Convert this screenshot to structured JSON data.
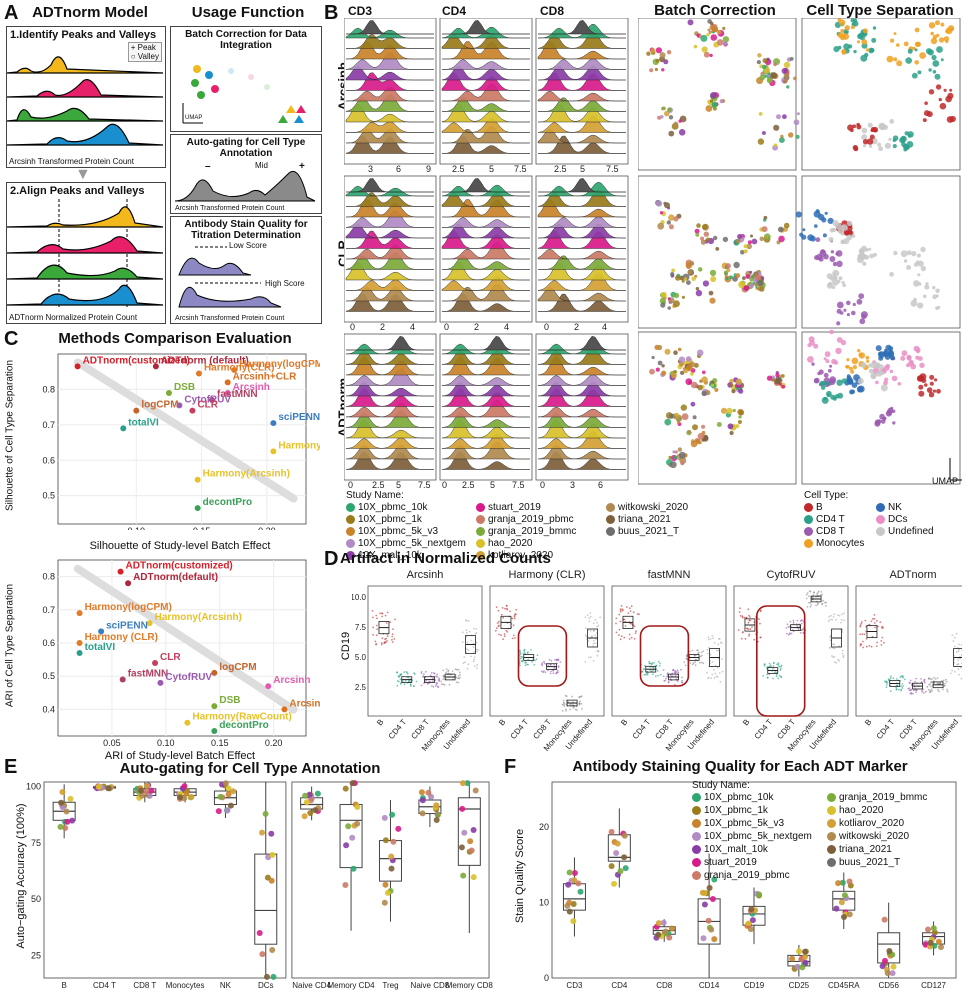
{
  "labels": {
    "A": "A",
    "B": "B",
    "C": "C",
    "D": "D",
    "E": "E",
    "F": "F"
  },
  "panelA": {
    "title": "ADTnorm Model",
    "usage_title": "Usage Function",
    "step1": "1.Identify Peaks and Valleys",
    "legend_peak": "Peak",
    "legend_valley": "Valley",
    "xlabel1": "Arcsinh Transformed Protein Count",
    "step2": "2.Align Peaks and Valleys",
    "xlabel2": "ADTnorm Normalized Protein Count",
    "usage1": "Batch Correction for Data Integration",
    "umap": "UMAP",
    "usage2": "Auto-gating for Cell Type Annotation",
    "mid": "Mid",
    "minus": "–",
    "plus": "+",
    "xlabel3": "Arcsinh Transformed Protein Count",
    "usage3": "Antibody Stain Quality for Titration Determination",
    "low_score": "Low Score",
    "high_score": "High Score",
    "xlabel4": "Arcsinh Transformed Protein Count"
  },
  "panelB": {
    "markers": [
      "CD3",
      "CD4",
      "CD8"
    ],
    "batch_title": "Batch Correction",
    "cell_title": "Cell Type Separation",
    "methods": [
      "Arcsinh",
      "CLR",
      "ADTnorm"
    ],
    "ticks": {
      "Arcsinh": [
        [
          "3",
          "6",
          "9"
        ],
        [
          "2.5",
          "5",
          "7.5"
        ],
        [
          "2.5",
          "5",
          "7.5"
        ]
      ],
      "CLR": [
        [
          "0",
          "2",
          "4"
        ],
        [
          "0",
          "2",
          "4"
        ],
        [
          "0",
          "2",
          "4"
        ]
      ],
      "ADTnorm": [
        [
          "0",
          "2.5",
          "5",
          "7.5"
        ],
        [
          "0",
          "2.5",
          "5",
          "7.5"
        ],
        [
          "0",
          "3",
          "6"
        ]
      ]
    },
    "umap": "UMAP",
    "study_title": "Study Name:",
    "studies": [
      {
        "name": "10X_pbmc_10k",
        "color": "#2ea76f"
      },
      {
        "name": "10X_pbmc_1k",
        "color": "#9a7b1c"
      },
      {
        "name": "10X_pbmc_5k_v3",
        "color": "#c9832a"
      },
      {
        "name": "10X_pbmc_5k_nextgem",
        "color": "#b08bc4"
      },
      {
        "name": "10X_malt_10k",
        "color": "#8a3ca8"
      },
      {
        "name": "stuart_2019",
        "color": "#d81b8a"
      },
      {
        "name": "granja_2019_pbmc",
        "color": "#cc7a66"
      },
      {
        "name": "granja_2019_bmmc",
        "color": "#7cab3a"
      },
      {
        "name": "hao_2020",
        "color": "#d8c12a"
      },
      {
        "name": "kotliarov_2020",
        "color": "#d4a035"
      },
      {
        "name": "witkowski_2020",
        "color": "#b08a50"
      },
      {
        "name": "triana_2021",
        "color": "#7d5f3a"
      },
      {
        "name": "buus_2021_T",
        "color": "#6e6e6e"
      }
    ],
    "celltype_title": "Cell Type:",
    "celltypes": [
      {
        "name": "B",
        "color": "#c0282a"
      },
      {
        "name": "CD4 T",
        "color": "#2aa08a"
      },
      {
        "name": "CD8 T",
        "color": "#9a5bb0"
      },
      {
        "name": "Monocytes",
        "color": "#f0a020"
      },
      {
        "name": "NK",
        "color": "#2e6db5"
      },
      {
        "name": "DCs",
        "color": "#e98fc4"
      },
      {
        "name": "Undefined",
        "color": "#c8c8c8"
      }
    ]
  },
  "panelC": {
    "title": "Methods Comparison Evaluation",
    "top": {
      "xlabel": "Silhouette of Study-level Batch Effect",
      "ylabel": "Silhouette of Cell Type Separation",
      "xticks": [
        "0.10",
        "0.15",
        "0.20"
      ],
      "yticks": [
        "0.5",
        "0.6",
        "0.7",
        "0.8"
      ]
    },
    "bottom": {
      "xlabel": "ARI of Study-level Batch Effect",
      "ylabel": "ARI of Cell Type Separation",
      "xticks": [
        "0.05",
        "0.10",
        "0.15",
        "0.20"
      ],
      "yticks": [
        "0.4",
        "0.5",
        "0.6",
        "0.7",
        "0.8"
      ]
    }
  },
  "panelD": {
    "title": "Artifact in Normalized Counts",
    "ylabel": "CD19",
    "methods": [
      "Arcsinh",
      "Harmony (CLR)",
      "fastMNN",
      "CytofRUV",
      "ADTnorm"
    ],
    "xcats": [
      "B",
      "CD4 T",
      "CD8 T",
      "Monocytes",
      "Undefined"
    ],
    "yticks_first": [
      "10.0",
      "7.5",
      "5.0",
      "2.5"
    ]
  },
  "panelE": {
    "title": "Auto-gating for Cell Type Annotation",
    "ylabel": "Auto−gating Accuracy (100%)",
    "yticks": [
      "100",
      "75",
      "50",
      "25"
    ]
  },
  "panelF": {
    "title": "Antibody Staining Quality for Each ADT Marker",
    "ylabel": "Stain Quality Score",
    "yticks": [
      "20",
      "10",
      "0"
    ],
    "study_title": "Study Name:"
  },
  "chart_data": [
    {
      "type": "scatter",
      "title": "Methods Comparison Evaluation",
      "xlabel": "Silhouette of Study-level Batch Effect",
      "ylabel": "Silhouette of Cell Type Separation",
      "xlim": [
        0.04,
        0.23
      ],
      "ylim": [
        0.42,
        0.9
      ],
      "points": [
        {
          "label": "ADTnorm(customized)",
          "x": 0.055,
          "y": 0.865,
          "color": "#d8202a"
        },
        {
          "label": "ADTnorm (default)",
          "x": 0.115,
          "y": 0.865,
          "color": "#b0263a"
        },
        {
          "label": "Harmony(CLR)",
          "x": 0.148,
          "y": 0.845,
          "color": "#e07b2a"
        },
        {
          "label": "Harmony(logCPM)",
          "x": 0.175,
          "y": 0.855,
          "color": "#e07b2a"
        },
        {
          "label": "Arcsinh+CLR",
          "x": 0.17,
          "y": 0.82,
          "color": "#d8701f"
        },
        {
          "label": "DSB",
          "x": 0.125,
          "y": 0.79,
          "color": "#7cab3a"
        },
        {
          "label": "Arcsinh",
          "x": 0.17,
          "y": 0.79,
          "color": "#e05cb0"
        },
        {
          "label": "fastMNN",
          "x": 0.158,
          "y": 0.77,
          "color": "#b0405e"
        },
        {
          "label": "CytofRUV",
          "x": 0.133,
          "y": 0.755,
          "color": "#9a5bb0"
        },
        {
          "label": "CLR",
          "x": 0.143,
          "y": 0.74,
          "color": "#c4405e"
        },
        {
          "label": "logCPM",
          "x": 0.1,
          "y": 0.74,
          "color": "#c4642a"
        },
        {
          "label": "sciPENN",
          "x": 0.205,
          "y": 0.705,
          "color": "#3a7ec0"
        },
        {
          "label": "totalVI",
          "x": 0.09,
          "y": 0.69,
          "color": "#2aa08a"
        },
        {
          "label": "Harmony (RawCount)",
          "x": 0.205,
          "y": 0.625,
          "color": "#e8c22a"
        },
        {
          "label": "Harmony(Arcsinh)",
          "x": 0.147,
          "y": 0.545,
          "color": "#e8c22a"
        },
        {
          "label": "decontPro",
          "x": 0.147,
          "y": 0.465,
          "color": "#3aa05a"
        }
      ]
    },
    {
      "type": "scatter",
      "xlabel": "ARI of Study-level Batch Effect",
      "ylabel": "ARI of Cell Type Separation",
      "xlim": [
        0.0,
        0.23
      ],
      "ylim": [
        0.32,
        0.85
      ],
      "points": [
        {
          "label": "ADTnorm(customized)",
          "x": 0.058,
          "y": 0.815,
          "color": "#d8202a"
        },
        {
          "label": "ADTnorm(default)",
          "x": 0.065,
          "y": 0.78,
          "color": "#b0263a"
        },
        {
          "label": "Harmony(logCPM)",
          "x": 0.02,
          "y": 0.69,
          "color": "#e07b2a"
        },
        {
          "label": "Harmony(Arcsinh)",
          "x": 0.085,
          "y": 0.66,
          "color": "#e8c22a"
        },
        {
          "label": "sciPENN",
          "x": 0.04,
          "y": 0.635,
          "color": "#3a7ec0"
        },
        {
          "label": "Harmony (CLR)",
          "x": 0.02,
          "y": 0.6,
          "color": "#e07b2a"
        },
        {
          "label": "totalVI",
          "x": 0.02,
          "y": 0.57,
          "color": "#2aa08a"
        },
        {
          "label": "CLR",
          "x": 0.09,
          "y": 0.54,
          "color": "#c4405e"
        },
        {
          "label": "logCPM",
          "x": 0.145,
          "y": 0.51,
          "color": "#c4642a"
        },
        {
          "label": "fastMNN",
          "x": 0.06,
          "y": 0.49,
          "color": "#b0405e"
        },
        {
          "label": "CytofRUV",
          "x": 0.095,
          "y": 0.48,
          "color": "#9a5bb0"
        },
        {
          "label": "Arcsinh",
          "x": 0.195,
          "y": 0.47,
          "color": "#e05cb0"
        },
        {
          "label": "Arcsinh+CLR",
          "x": 0.21,
          "y": 0.4,
          "color": "#d8701f"
        },
        {
          "label": "DSB",
          "x": 0.145,
          "y": 0.41,
          "color": "#7cab3a"
        },
        {
          "label": "Harmony(RawCount)",
          "x": 0.12,
          "y": 0.36,
          "color": "#e8c22a"
        },
        {
          "label": "decontPro",
          "x": 0.145,
          "y": 0.335,
          "color": "#3aa05a"
        }
      ]
    },
    {
      "type": "box",
      "title": "Auto-gating for Cell Type Annotation",
      "ylabel": "Auto−gating Accuracy (100%)",
      "ylim": [
        15,
        102
      ],
      "categories": [
        "B",
        "CD4 T",
        "CD8 T",
        "Monocytes",
        "NK",
        "DCs",
        "Naive CD4",
        "Memory CD4",
        "Treg",
        "Naive CD8",
        "Memory CD8"
      ],
      "boxes": [
        {
          "q1": 85,
          "med": 89,
          "q3": 93
        },
        {
          "q1": 99.3,
          "med": 99.6,
          "q3": 99.9
        },
        {
          "q1": 96,
          "med": 97.5,
          "q3": 99
        },
        {
          "q1": 96,
          "med": 97.5,
          "q3": 99
        },
        {
          "q1": 92,
          "med": 95,
          "q3": 98
        },
        {
          "q1": 30,
          "med": 45,
          "q3": 70
        },
        {
          "q1": 90,
          "med": 92,
          "q3": 95
        },
        {
          "q1": 64,
          "med": 85,
          "q3": 92
        },
        {
          "q1": 58,
          "med": 68,
          "q3": 76
        },
        {
          "q1": 88,
          "med": 91,
          "q3": 94
        },
        {
          "q1": 65,
          "med": 90,
          "q3": 95
        }
      ]
    },
    {
      "type": "box",
      "title": "Antibody Staining Quality for Each ADT Marker",
      "ylabel": "Stain Quality Score",
      "ylim": [
        0,
        26
      ],
      "categories": [
        "CD3",
        "CD4",
        "CD8",
        "CD14",
        "CD19",
        "CD25",
        "CD45RA",
        "CD56",
        "CD127"
      ],
      "boxes": [
        {
          "q1": 9,
          "med": 10.5,
          "q3": 12.5
        },
        {
          "q1": 15.5,
          "med": 16,
          "q3": 19
        },
        {
          "q1": 5.8,
          "med": 6.3,
          "q3": 6.8
        },
        {
          "q1": 4.5,
          "med": 7.5,
          "q3": 10.5
        },
        {
          "q1": 7,
          "med": 8.5,
          "q3": 9.5
        },
        {
          "q1": 1.6,
          "med": 2.2,
          "q3": 3
        },
        {
          "q1": 9,
          "med": 10.5,
          "q3": 11.5
        },
        {
          "q1": 2,
          "med": 4.5,
          "q3": 6
        },
        {
          "q1": 4.5,
          "med": 5.5,
          "q3": 6
        }
      ]
    }
  ]
}
